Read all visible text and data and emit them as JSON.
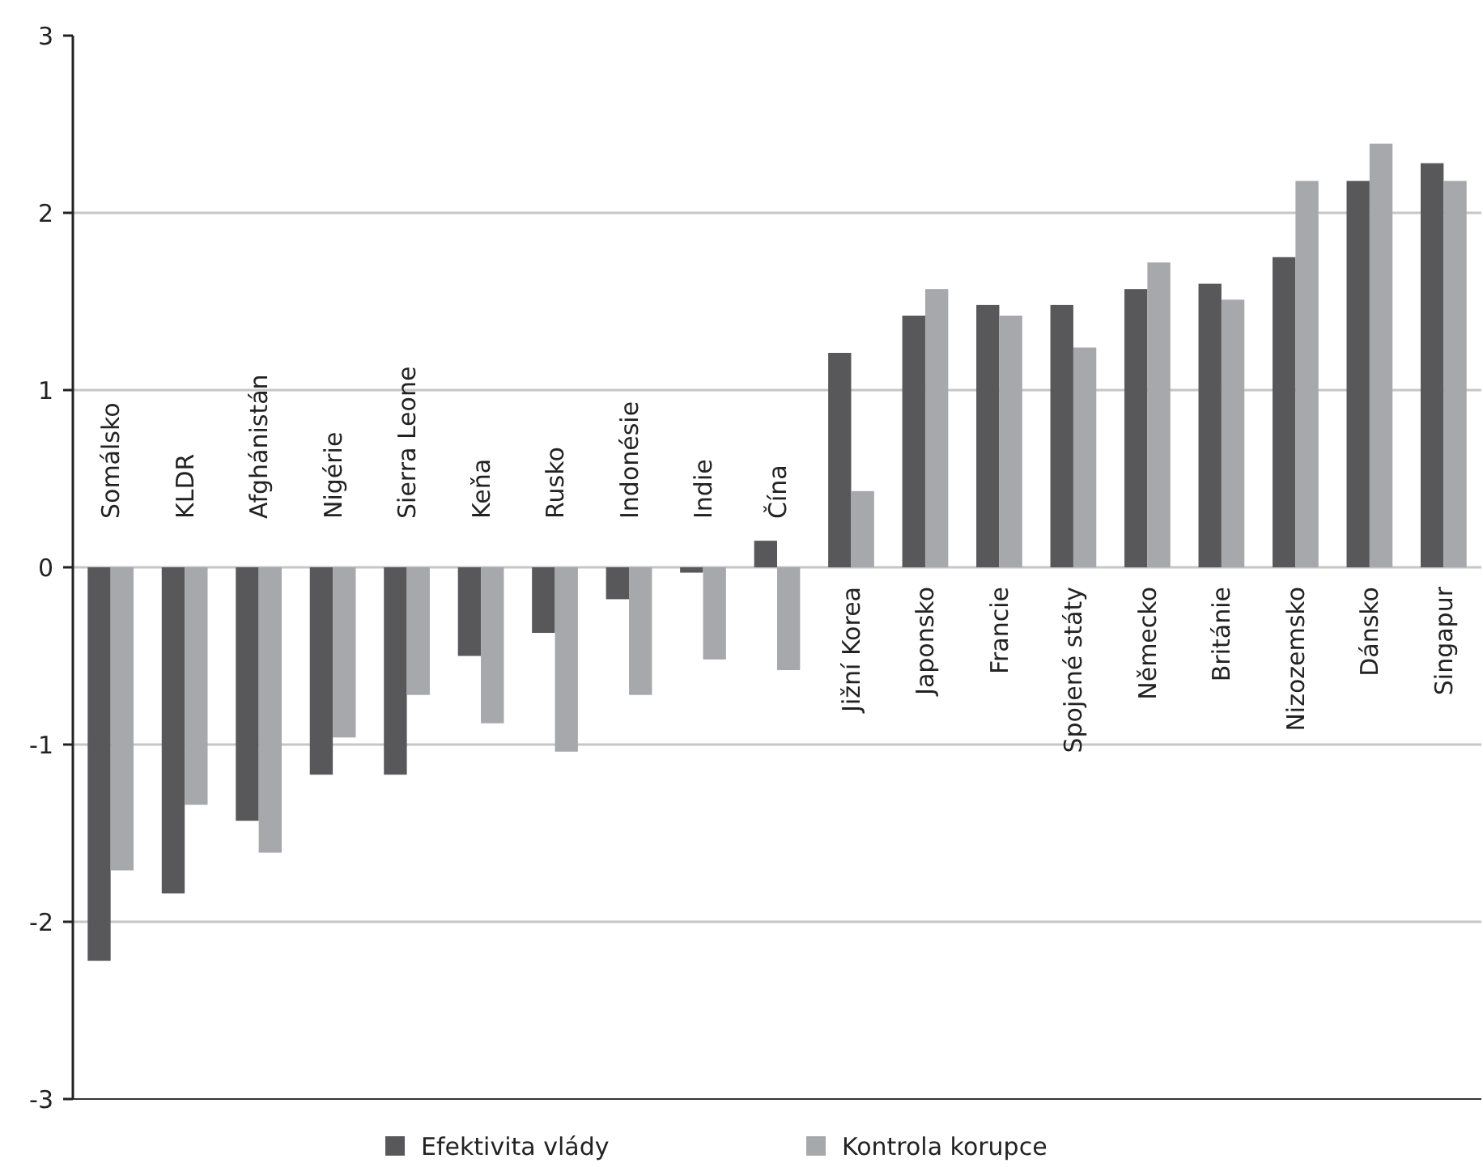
{
  "chart_data": {
    "type": "bar",
    "categories": [
      "Somálsko",
      "KLDR",
      "Afghánistán",
      "Nigérie",
      "Sierra Leone",
      "Keňa",
      "Rusko",
      "Indonésie",
      "Indie",
      "Čína",
      "Jižní Korea",
      "Japonsko",
      "Francie",
      "Spojené státy",
      "Německo",
      "Británie",
      "Nizozemsko",
      "Dánsko",
      "Singapur"
    ],
    "series": [
      {
        "name": "Efektivita vlády",
        "color": "#58585a",
        "values": [
          -2.22,
          -1.84,
          -1.43,
          -1.17,
          -1.17,
          -0.5,
          -0.37,
          -0.18,
          -0.03,
          0.15,
          1.21,
          1.42,
          1.48,
          1.48,
          1.57,
          1.6,
          1.75,
          2.18,
          2.28
        ]
      },
      {
        "name": "Kontrola korupce",
        "color": "#a7a8ab",
        "values": [
          -1.71,
          -1.34,
          -1.61,
          -0.96,
          -0.72,
          -0.88,
          -1.04,
          -0.72,
          -0.52,
          -0.58,
          0.43,
          1.57,
          1.42,
          1.24,
          1.72,
          1.51,
          2.18,
          2.39,
          2.18
        ]
      }
    ],
    "ylim": [
      -3,
      3
    ],
    "yticks": [
      -3,
      -2,
      -1,
      0,
      1,
      2,
      3
    ],
    "grid": "y",
    "legend": "bottom"
  }
}
